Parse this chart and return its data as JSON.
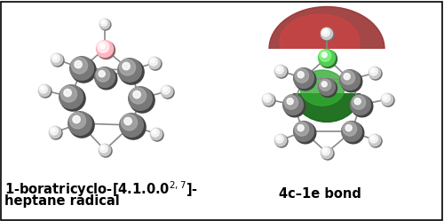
{
  "figsize": [
    5.0,
    2.49
  ],
  "dpi": 100,
  "background_color": "#ffffff",
  "left_label_line1": "1-boratricyclo-[4.1.0.0$^{2,7}$]-",
  "left_label_line2": "heptane radical",
  "right_label": "4c–1e bond",
  "font_size": 10.5,
  "font_weight": "bold",
  "border_color": "#000000",
  "border_width": 1.2,
  "carbon_color": "#787878",
  "carbon_edge": "#555555",
  "hydrogen_color": "#c8c8c8",
  "hydrogen_edge": "#999999",
  "boron_color": "#ffb6c1",
  "boron_edge": "#d88898",
  "boron_green_color": "#55cc55",
  "boron_green_edge": "#229922"
}
